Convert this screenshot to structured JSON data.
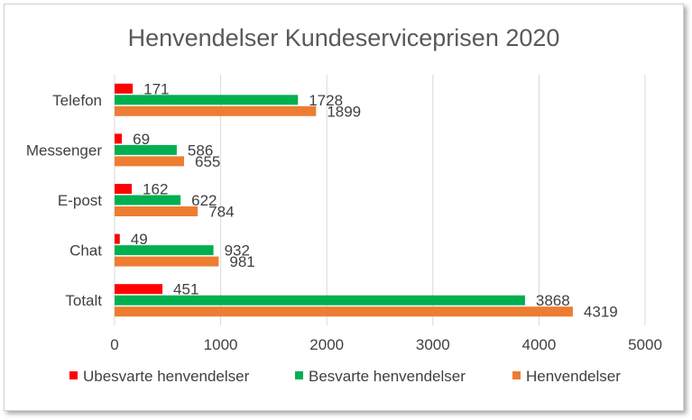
{
  "chart_data": {
    "type": "bar",
    "orientation": "horizontal",
    "title": "Henvendelser Kundeserviceprisen 2020",
    "categories": [
      "Telefon",
      "Messenger",
      "E-post",
      "Chat",
      "Totalt"
    ],
    "series": [
      {
        "name": "Ubesvarte henvendelser",
        "color": "#ff0000",
        "values": [
          171,
          69,
          162,
          49,
          451
        ]
      },
      {
        "name": "Besvarte henvendelser",
        "color": "#00b050",
        "values": [
          1728,
          586,
          622,
          932,
          3868
        ]
      },
      {
        "name": "Henvendelser",
        "color": "#ed7d31",
        "values": [
          1899,
          655,
          784,
          981,
          4319
        ]
      }
    ],
    "xlim": [
      0,
      5000
    ],
    "xticks": [
      0,
      1000,
      2000,
      3000,
      4000,
      5000
    ],
    "grid": true,
    "legend_position": "bottom"
  }
}
